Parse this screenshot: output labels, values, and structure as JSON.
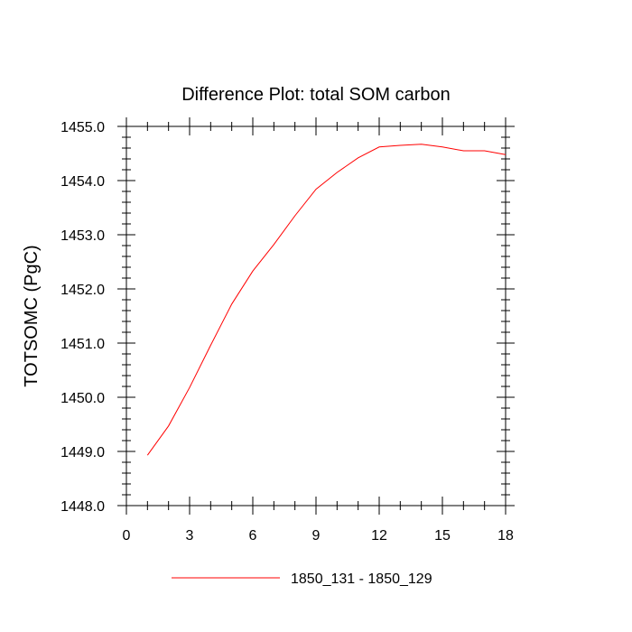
{
  "chart_data": {
    "type": "line",
    "title": "Difference Plot: total SOM carbon",
    "xlabel": "",
    "ylabel": "TOTSOMC  (PgC)",
    "xlim": [
      0,
      18
    ],
    "ylim": [
      1448.0,
      1455.0
    ],
    "x_ticks": [
      0,
      3,
      6,
      9,
      12,
      15,
      18
    ],
    "x_tick_labels": [
      "0",
      "3",
      "6",
      "9",
      "12",
      "15",
      "18"
    ],
    "y_ticks": [
      1448.0,
      1449.0,
      1450.0,
      1451.0,
      1452.0,
      1453.0,
      1454.0,
      1455.0
    ],
    "y_tick_labels": [
      "1448.0",
      "1449.0",
      "1450.0",
      "1451.0",
      "1452.0",
      "1453.0",
      "1454.0",
      "1455.0"
    ],
    "grid": false,
    "legend_position": "bottom",
    "series": [
      {
        "name": "1850_131 - 1850_129",
        "color": "#ff0000",
        "x": [
          1,
          2,
          3,
          4,
          5,
          6,
          7,
          8,
          9,
          10,
          11,
          12,
          13,
          14,
          15,
          16,
          17,
          18
        ],
        "values": [
          1448.93,
          1449.47,
          1450.18,
          1450.96,
          1451.72,
          1452.33,
          1452.82,
          1453.35,
          1453.84,
          1454.15,
          1454.42,
          1454.62,
          1454.65,
          1454.67,
          1454.62,
          1454.55,
          1454.55,
          1454.48
        ]
      }
    ]
  }
}
